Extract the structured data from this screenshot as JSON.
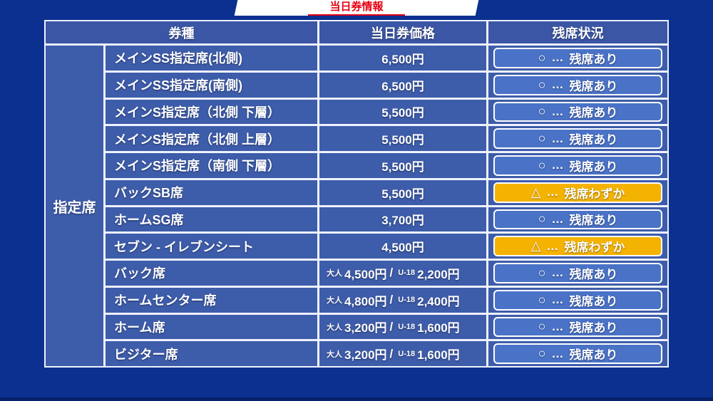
{
  "banner": {
    "title": "当日券情報"
  },
  "table": {
    "headers": {
      "ticket_type": "券種",
      "price": "当日券価格",
      "availability": "残席状況"
    },
    "category_label": "指定席",
    "price_labels": {
      "adult": "大人",
      "u18": "U-18",
      "separator": "/"
    },
    "statuses": {
      "separator": "…",
      "available": {
        "symbol": "○",
        "label": "残席あり"
      },
      "few": {
        "symbol": "△",
        "label": "残席わずか"
      }
    },
    "rows": [
      {
        "name": "メインSS指定席(北側)",
        "price": "6,500円",
        "status": "available"
      },
      {
        "name": "メインSS指定席(南側)",
        "price": "6,500円",
        "status": "available"
      },
      {
        "name": "メインS指定席（北側 下層）",
        "price": "5,500円",
        "status": "available"
      },
      {
        "name": "メインS指定席（北側 上層）",
        "price": "5,500円",
        "status": "available"
      },
      {
        "name": "メインS指定席（南側 下層）",
        "price": "5,500円",
        "status": "available"
      },
      {
        "name": "バックSB席",
        "price": "5,500円",
        "status": "few"
      },
      {
        "name": "ホームSG席",
        "price": "3,700円",
        "status": "available"
      },
      {
        "name": "セブン - イレブンシート",
        "price": "4,500円",
        "status": "few"
      },
      {
        "name": "バック席",
        "adult_price": "4,500円",
        "u18_price": "2,200円",
        "status": "available"
      },
      {
        "name": "ホームセンター席",
        "adult_price": "4,800円",
        "u18_price": "2,400円",
        "status": "available"
      },
      {
        "name": "ホーム席",
        "adult_price": "3,200円",
        "u18_price": "1,600円",
        "status": "available"
      },
      {
        "name": "ビジター席",
        "adult_price": "3,200円",
        "u18_price": "1,600円",
        "status": "available"
      }
    ]
  },
  "colors": {
    "background": "#0b3090",
    "row_blue": "#3d5caa",
    "header_blue": "#3a56a4",
    "border_white": "#eef2fb",
    "badge_available_blue": "#4a73c7",
    "badge_few_yellow": "#f5b301",
    "banner_red": "#e60012",
    "text_white": "#ffffff"
  }
}
